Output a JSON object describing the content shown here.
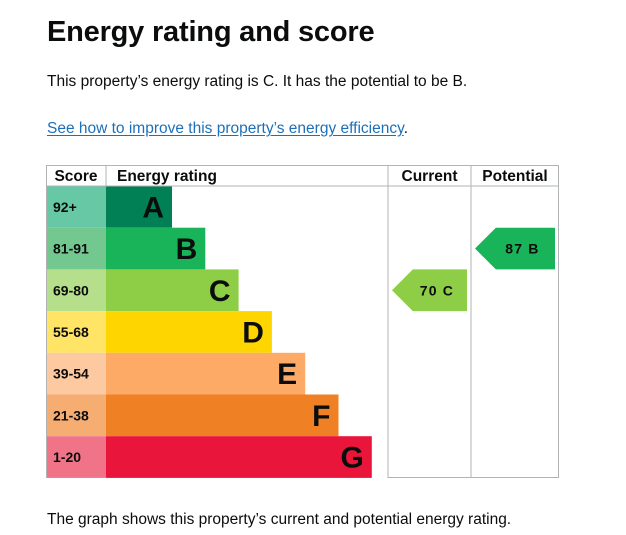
{
  "page": {
    "title": "Energy rating and score",
    "summary": "This property’s energy rating is C. It has the potential to be B.",
    "link_text": "See how to improve this property’s energy efficiency",
    "link_suffix": ".",
    "footnote": "The graph shows this property’s current and potential energy rating."
  },
  "chart_data": {
    "type": "bar",
    "headers": {
      "score": "Score",
      "rating": "Energy rating",
      "current": "Current",
      "potential": "Potential"
    },
    "bands": [
      {
        "score": "92+",
        "letter": "A",
        "color": "#008054",
        "score_bg": "#67c8a5",
        "level": 1
      },
      {
        "score": "81-91",
        "letter": "B",
        "color": "#19b459",
        "score_bg": "#73c88f",
        "level": 2
      },
      {
        "score": "69-80",
        "letter": "C",
        "color": "#8dce46",
        "score_bg": "#b5df8b",
        "level": 3
      },
      {
        "score": "55-68",
        "letter": "D",
        "color": "#ffd500",
        "score_bg": "#ffe466",
        "level": 4
      },
      {
        "score": "39-54",
        "letter": "E",
        "color": "#fcaa65",
        "score_bg": "#fdc9a0",
        "level": 5
      },
      {
        "score": "21-38",
        "letter": "F",
        "color": "#ef8023",
        "score_bg": "#f5ad72",
        "level": 6
      },
      {
        "score": "1-20",
        "letter": "G",
        "color": "#e9153b",
        "score_bg": "#f07388",
        "level": 7
      }
    ],
    "current": {
      "score": 70,
      "letter": "C",
      "label": "70 C",
      "color": "#8dce46"
    },
    "potential": {
      "score": 87,
      "letter": "B",
      "label": "87 B",
      "color": "#19b459"
    }
  }
}
